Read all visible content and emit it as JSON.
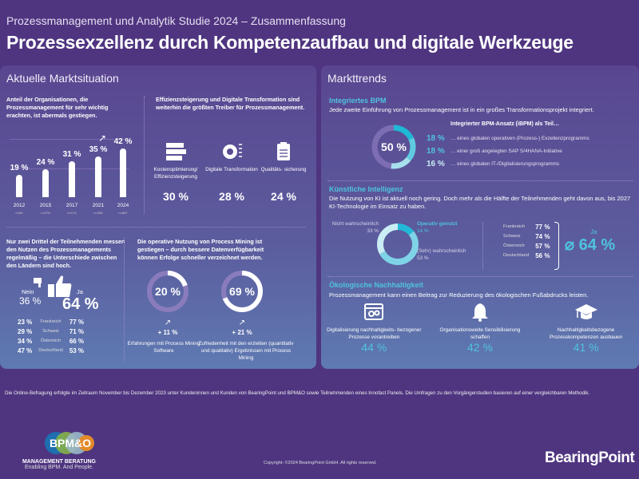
{
  "header": {
    "subtitle": "Prozessmanagement und Analytik Studie 2024 – Zusammenfassung",
    "title": "Prozessexzellenz durch Kompetenzaufbau und digitale Werkzeuge"
  },
  "left": {
    "title": "Aktuelle Marktsituation",
    "importance": {
      "text": "Anteil der Organisationen, die Prozessmanagement für sehr wichtig erachten, ist abermals gestiegen."
    },
    "chart_data": {
      "type": "bar",
      "categories": [
        "2012",
        "2015",
        "2017",
        "2021",
        "2024"
      ],
      "values": [
        19,
        24,
        31,
        35,
        42
      ],
      "value_labels": [
        "19 %",
        "24 %",
        "31 %",
        "35 %",
        "42 %"
      ],
      "sample_sizes": [
        "n=60",
        "n=278",
        "n=174",
        "n=336",
        "n=667"
      ],
      "ylim": [
        0,
        50
      ],
      "grid": true,
      "trend_icon": "arrow-up-right"
    },
    "drivers": {
      "text": "Effizienzsteigerung und Digitale Transformation sind weiterhin die größten Treiber für Prozessmanagement.",
      "items": [
        {
          "icon": "stacked-bars-icon",
          "label": "Kostenoptimierung/ Effizienzsteigerung",
          "value": "30 %"
        },
        {
          "icon": "gear-chip-icon",
          "label": "Digitale Transformation",
          "value": "28 %"
        },
        {
          "icon": "clipboard-checklist-icon",
          "label": "Qualitäts- sicherung",
          "value": "24 %"
        }
      ]
    },
    "measure": {
      "text": "Nur zwei Drittel der Teilnehmenden messen den Nutzen des Prozessmanage­ments regelmäßig – die Unterschiede zwischen den Ländern  sind hoch.",
      "no_label": "Nein",
      "no_value": "36 %",
      "yes_label": "Ja",
      "yes_value": "64 %",
      "countries": [
        {
          "no": "23 %",
          "name": "Frankreich",
          "yes": "77 %"
        },
        {
          "no": "29 %",
          "name": "Schweiz",
          "yes": "71 %"
        },
        {
          "no": "34 %",
          "name": "Österreich",
          "yes": "66 %"
        },
        {
          "no": "47 %",
          "name": "Deutschland",
          "yes": "53 %"
        }
      ]
    },
    "mining": {
      "text": "Die operative Nutzung von Process Mining ist gestiegen – durch bessere Datenverfügbarkeit können Erfolge schneller verzeichnet werden.",
      "items": [
        {
          "value": 20,
          "label": "20 %",
          "change": "+ 11 %",
          "desc": "Erfahrungen mit Process Mining Software"
        },
        {
          "value": 69,
          "label": "69 %",
          "change": "+ 21 %",
          "desc": "Zufriedenheit mit den erzielten (quantitativ und qualitativ) Ergebnissen mit Process Mining"
        }
      ]
    }
  },
  "right": {
    "title": "Markttrends",
    "bpm": {
      "heading": "Integriertes BPM",
      "text": "Jede zweite Einführung von Prozessmanagement ist in ein großes Transformationsprojekt integriert.",
      "donut_label": "50 %",
      "donut_value": 50,
      "list_title": "Integrierter BPM-Ansatz (iBPM) als Teil…",
      "items": [
        {
          "value": 18,
          "label": "18 %",
          "text": "… eines globalen operativen (Prozess-) Exzellenzprogramms",
          "color": "#1fb8d6"
        },
        {
          "value": 18,
          "label": "18 %",
          "text": "… einer groß angelegten SAP S/4HANA-Initiative",
          "color": "#5fcbe0"
        },
        {
          "value": 16,
          "label": "16 %",
          "text": "… eines globalen IT-/Digitalisierungsprogramms",
          "color": "#a7e0ec"
        }
      ]
    },
    "ai": {
      "heading": "Künstliche Intelligenz",
      "text": "Die Nutzung von KI ist aktuell noch gering. Doch mehr als die Hälfte der Teilnehmenden geht davon aus, bis 2027 KI-Technologie im Einsatz zu haben.",
      "segments": [
        {
          "name": "Operativ genutzt",
          "value": 14,
          "label": "14 %",
          "color": "#22b9d8"
        },
        {
          "name": "(Sehr) wahrscheinlich",
          "value": 53,
          "label": "53 %",
          "color": "#7fd3e6"
        },
        {
          "name": "Nicht wahrscheinlich",
          "value": 33,
          "label": "33 %",
          "color": "#c9edf4"
        }
      ],
      "countries": [
        {
          "name": "Frankreich",
          "value": "77 %"
        },
        {
          "name": "Schweiz",
          "value": "74 %"
        },
        {
          "name": "Österreich",
          "value": "57 %"
        },
        {
          "name": "Deutschland",
          "value": "56 %"
        }
      ],
      "yes_label": "Ja",
      "avg": "⌀ 64 %"
    },
    "eco": {
      "heading": "Ökologische Nachhaltigkeit",
      "text": "Prozessmanagement kann einen Beitrag zur Reduzierung des ökologischen Fußabdrucks leisten.",
      "items": [
        {
          "icon": "browser-gears-icon",
          "label": "Digitalisierung nachhaltigkeits- bezogener Prozesse vorantreiben",
          "value": "44 %"
        },
        {
          "icon": "bell-icon",
          "label": "Organisationsweite Sensibilisierung schaffen",
          "value": "42 %"
        },
        {
          "icon": "graduation-cap-icon",
          "label": "Nachhaltigkeitsbezogene Prozesskompetenzen ausbauen",
          "value": "41 %"
        }
      ]
    }
  },
  "footer": {
    "note": "Die Online-Befragung erfolgte im Zeitraum November bis Dezember 2023 unter Kundeninnen und Kunden von BearingPoint und BPM&O sowie Teilnehmenden eines Innofact Panels. Die Umfragen zu den Vorgängerstudien basieren auf einer vergleichbaren Methodik.",
    "copyright": "Copyright: ©2024 BearingPoint GmbH. All rights reserved.",
    "bpmo_logo": "BPM&O",
    "bpmo_line1": "MANAGEMENT BERATUNG",
    "bpmo_line2": "Enabling BPM. And People.",
    "bp_logo": "BearingPoint"
  }
}
